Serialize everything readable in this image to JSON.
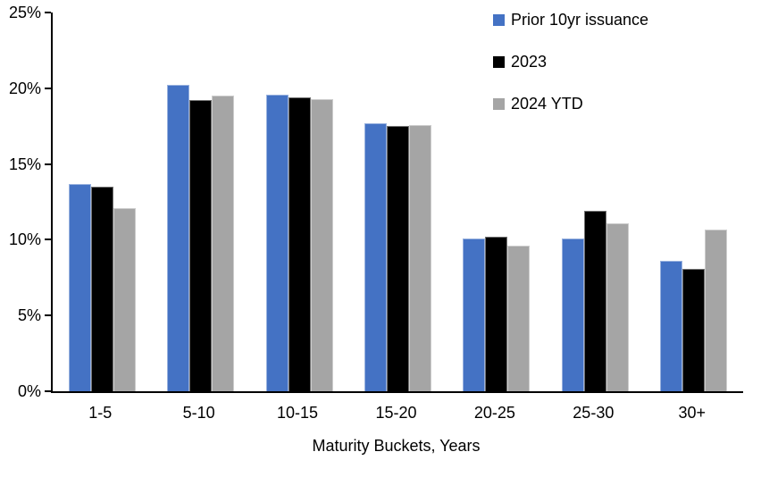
{
  "chart_data": {
    "type": "bar",
    "title": "",
    "xlabel": "Maturity Buckets, Years",
    "ylabel": "",
    "ylim": [
      0,
      25
    ],
    "ytick_step": 5,
    "yticks": [
      "0%",
      "5%",
      "10%",
      "15%",
      "20%",
      "25%"
    ],
    "grid": false,
    "legend_position": "top-right",
    "categories": [
      "1-5",
      "5-10",
      "10-15",
      "15-20",
      "20-25",
      "25-30",
      "30+"
    ],
    "series": [
      {
        "name": "Prior 10yr issuance",
        "color": "#4472C4",
        "values": [
          13.7,
          20.2,
          19.6,
          17.7,
          10.1,
          10.1,
          8.6
        ]
      },
      {
        "name": "2023",
        "color": "#000000",
        "values": [
          13.5,
          19.2,
          19.4,
          17.5,
          10.2,
          11.9,
          8.1
        ]
      },
      {
        "name": "2024 YTD",
        "color": "#A5A5A5",
        "values": [
          12.1,
          19.5,
          19.3,
          17.6,
          9.6,
          11.1,
          10.7
        ]
      }
    ]
  }
}
